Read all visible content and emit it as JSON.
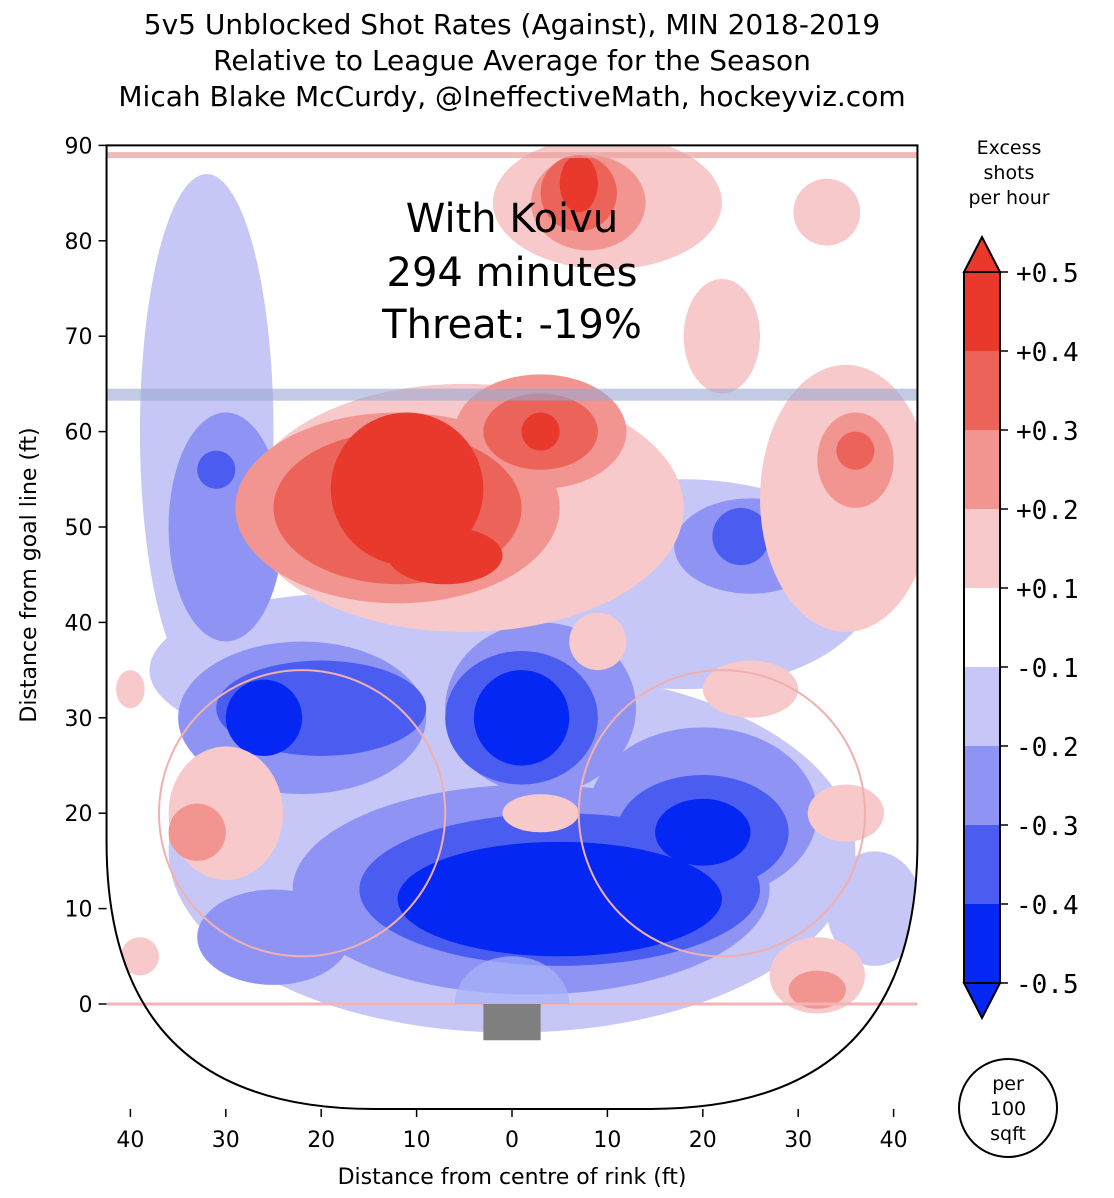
{
  "chart_data": {
    "type": "heatmap",
    "title": [
      "5v5 Unblocked Shot Rates (Against), MIN 2018-2019",
      "Relative to League Average for the Season",
      "Micah Blake McCurdy, @IneffectiveMath, hockeyviz.com"
    ],
    "annotation": [
      "With Koivu",
      "294 minutes",
      "Threat: -19%"
    ],
    "xlabel": "Distance from centre of rink (ft)",
    "ylabel": "Distance from goal line (ft)",
    "xlim": [
      -42.5,
      42.5
    ],
    "ylim": [
      -11,
      90
    ],
    "xticks": [
      {
        "v": -40,
        "label": "40"
      },
      {
        "v": -30,
        "label": "30"
      },
      {
        "v": -20,
        "label": "20"
      },
      {
        "v": -10,
        "label": "10"
      },
      {
        "v": 0,
        "label": "0"
      },
      {
        "v": 10,
        "label": "10"
      },
      {
        "v": 20,
        "label": "20"
      },
      {
        "v": 30,
        "label": "30"
      },
      {
        "v": 40,
        "label": "40"
      }
    ],
    "yticks": [
      0,
      10,
      20,
      30,
      40,
      50,
      60,
      70,
      80,
      90
    ],
    "colorbar": {
      "title": [
        "Excess",
        "shots",
        "per hour"
      ],
      "labels": [
        "+0.5",
        "+0.4",
        "+0.3",
        "+0.2",
        "+0.1",
        "-0.1",
        "-0.2",
        "-0.3",
        "-0.4",
        "-0.5"
      ],
      "colors": [
        "#e8392c",
        "#ec635a",
        "#f29591",
        "#f7c9ca",
        "#ffffff",
        "#c6c7f7",
        "#8f94f4",
        "#4b5df0",
        "#0427f3"
      ]
    },
    "unit_badge": [
      "per",
      "100",
      "sqft"
    ],
    "regions": [
      {
        "level": -0.1,
        "x": -32,
        "y": 60,
        "rx": 7,
        "ry": 27
      },
      {
        "level": -0.1,
        "x": 0,
        "y": 16,
        "rx": 36,
        "ry": 19
      },
      {
        "level": -0.1,
        "x": 18,
        "y": 44,
        "rx": 20,
        "ry": 11
      },
      {
        "level": -0.1,
        "x": 38,
        "y": 10,
        "rx": 5,
        "ry": 6
      },
      {
        "level": -0.1,
        "x": -18,
        "y": 35,
        "rx": 20,
        "ry": 8
      },
      {
        "level": -0.2,
        "x": -30,
        "y": 50,
        "rx": 6,
        "ry": 12
      },
      {
        "level": -0.2,
        "x": -22,
        "y": 30,
        "rx": 13,
        "ry": 8
      },
      {
        "level": -0.2,
        "x": 2,
        "y": 12,
        "rx": 25,
        "ry": 11
      },
      {
        "level": -0.2,
        "x": 25,
        "y": 48,
        "rx": 8,
        "ry": 5
      },
      {
        "level": -0.2,
        "x": -25,
        "y": 7,
        "rx": 8,
        "ry": 5
      },
      {
        "level": -0.2,
        "x": 3,
        "y": 31,
        "rx": 10,
        "ry": 9
      },
      {
        "level": -0.2,
        "x": 20,
        "y": 20,
        "rx": 12,
        "ry": 9
      },
      {
        "level": -0.3,
        "x": -20,
        "y": 31,
        "rx": 11,
        "ry": 5
      },
      {
        "level": -0.3,
        "x": 1,
        "y": 30,
        "rx": 8,
        "ry": 7
      },
      {
        "level": -0.3,
        "x": 5,
        "y": 12,
        "rx": 21,
        "ry": 8
      },
      {
        "level": -0.3,
        "x": 20,
        "y": 18,
        "rx": 9,
        "ry": 6
      },
      {
        "level": -0.3,
        "x": -31,
        "y": 56,
        "rx": 2,
        "ry": 2
      },
      {
        "level": -0.3,
        "x": 24,
        "y": 49,
        "rx": 3,
        "ry": 3
      },
      {
        "level": -0.4,
        "x": -26,
        "y": 30,
        "rx": 4,
        "ry": 4
      },
      {
        "level": -0.4,
        "x": 1,
        "y": 30,
        "rx": 5,
        "ry": 5
      },
      {
        "level": -0.4,
        "x": 5,
        "y": 11,
        "rx": 17,
        "ry": 6
      },
      {
        "level": -0.4,
        "x": 20,
        "y": 18,
        "rx": 5,
        "ry": 3.5
      },
      {
        "level": 0.1,
        "x": 10,
        "y": 84,
        "rx": 12,
        "ry": 7
      },
      {
        "level": 0.1,
        "x": -5,
        "y": 52,
        "rx": 23,
        "ry": 13
      },
      {
        "level": 0.1,
        "x": 35,
        "y": 53,
        "rx": 9,
        "ry": 14
      },
      {
        "level": 0.1,
        "x": 22,
        "y": 70,
        "rx": 4,
        "ry": 6
      },
      {
        "level": 0.1,
        "x": 33,
        "y": 83,
        "rx": 3.5,
        "ry": 3.5
      },
      {
        "level": 0.1,
        "x": -30,
        "y": 20,
        "rx": 6,
        "ry": 7
      },
      {
        "level": 0.1,
        "x": 32,
        "y": 3,
        "rx": 5,
        "ry": 4
      },
      {
        "level": 0.1,
        "x": 35,
        "y": 20,
        "rx": 4,
        "ry": 3
      },
      {
        "level": 0.1,
        "x": 25,
        "y": 33,
        "rx": 5,
        "ry": 3
      },
      {
        "level": 0.1,
        "x": 9,
        "y": 38,
        "rx": 3,
        "ry": 3
      },
      {
        "level": 0.1,
        "x": 3,
        "y": 20,
        "rx": 4,
        "ry": 2
      },
      {
        "level": 0.1,
        "x": -39,
        "y": 5,
        "rx": 2,
        "ry": 2
      },
      {
        "level": 0.1,
        "x": -40,
        "y": 33,
        "rx": 1.5,
        "ry": 2
      },
      {
        "level": 0.2,
        "x": -12,
        "y": 52,
        "rx": 17,
        "ry": 10
      },
      {
        "level": 0.2,
        "x": 3,
        "y": 60,
        "rx": 9,
        "ry": 6
      },
      {
        "level": 0.2,
        "x": 8,
        "y": 84,
        "rx": 6,
        "ry": 5
      },
      {
        "level": 0.2,
        "x": 36,
        "y": 57,
        "rx": 4,
        "ry": 5
      },
      {
        "level": 0.2,
        "x": -33,
        "y": 18,
        "rx": 3,
        "ry": 3
      },
      {
        "level": 0.2,
        "x": 32,
        "y": 1.5,
        "rx": 3,
        "ry": 2
      },
      {
        "level": 0.3,
        "x": -12,
        "y": 52,
        "rx": 13,
        "ry": 8
      },
      {
        "level": 0.3,
        "x": 3,
        "y": 60,
        "rx": 6,
        "ry": 4
      },
      {
        "level": 0.3,
        "x": 7,
        "y": 85,
        "rx": 4,
        "ry": 4
      },
      {
        "level": 0.3,
        "x": 36,
        "y": 58,
        "rx": 2,
        "ry": 2
      },
      {
        "level": 0.4,
        "x": -11,
        "y": 54,
        "rx": 8,
        "ry": 8
      },
      {
        "level": 0.4,
        "x": -7,
        "y": 47,
        "rx": 6,
        "ry": 3
      },
      {
        "level": 0.4,
        "x": 3,
        "y": 60,
        "rx": 2,
        "ry": 2
      },
      {
        "level": 0.4,
        "x": 7,
        "y": 86,
        "rx": 2,
        "ry": 3
      }
    ]
  }
}
